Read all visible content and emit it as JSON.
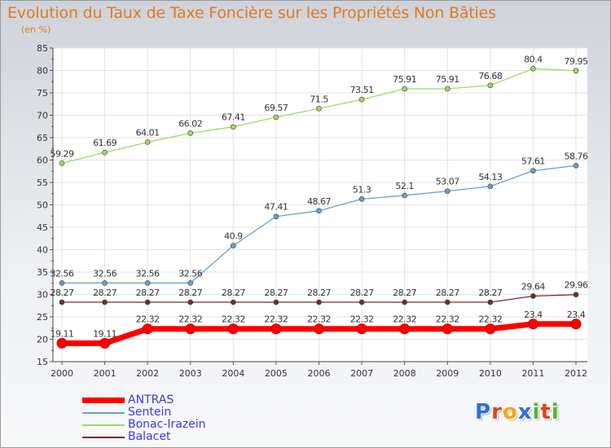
{
  "title": "Evolution du Taux de Taxe Foncière sur les Propriétés Non Bâties",
  "unit_label": "(en %)",
  "logo": {
    "text": "Proxiti",
    "letters": [
      {
        "ch": "P",
        "color": "#2f6fd6"
      },
      {
        "ch": "r",
        "color": "#e0431b"
      },
      {
        "ch": "o",
        "color": "#f2a71b"
      },
      {
        "ch": "x",
        "color": "#2f6fd6"
      },
      {
        "ch": "i",
        "color": "#58b42b"
      },
      {
        "ch": "t",
        "color": "#e0431b"
      },
      {
        "ch": "i",
        "color": "#58b42b"
      }
    ]
  },
  "chart_data": {
    "type": "line",
    "title": "Evolution du Taux de Taxe Foncière sur les Propriétés Non Bâties",
    "ylabel": "(en %)",
    "xlabel": "",
    "x": [
      "2000",
      "2001",
      "2002",
      "2003",
      "2004",
      "2005",
      "2006",
      "2007",
      "2008",
      "2009",
      "2010",
      "2011",
      "2012"
    ],
    "ylim": [
      15,
      85
    ],
    "yticks": [
      15,
      20,
      25,
      30,
      35,
      40,
      45,
      50,
      55,
      60,
      65,
      70,
      75,
      80,
      85
    ],
    "grid": true,
    "legend_position": "bottom-left",
    "series": [
      {
        "name": "ANTRAS",
        "color": "#ff0000",
        "values": [
          19.11,
          19.11,
          22.32,
          22.32,
          22.32,
          22.32,
          22.32,
          22.32,
          22.32,
          22.32,
          22.32,
          23.4,
          23.4
        ],
        "labels": [
          "19.11",
          "19.11",
          "22.32",
          "22.32",
          "22.32",
          "22.32",
          "22.32",
          "22.32",
          "22.32",
          "22.32",
          "22.32",
          "23.4",
          "23.4"
        ]
      },
      {
        "name": "Sentein",
        "color": "#6a9fcf",
        "values": [
          32.56,
          32.56,
          32.56,
          32.56,
          40.9,
          47.41,
          48.67,
          51.3,
          52.1,
          53.07,
          54.13,
          57.61,
          58.76
        ],
        "labels": [
          "32.56",
          "32.56",
          "32.56",
          "32.56",
          "40.9",
          "47.41",
          "48.67",
          "51.3",
          "52.1",
          "53.07",
          "54.13",
          "57.61",
          "58.76"
        ]
      },
      {
        "name": "Bonac-Irazein",
        "color": "#99dd66",
        "values": [
          59.29,
          61.69,
          64.01,
          66.02,
          67.41,
          69.57,
          71.5,
          73.51,
          75.91,
          75.91,
          76.68,
          80.4,
          79.95
        ],
        "labels": [
          "59.29",
          "61.69",
          "64.01",
          "66.02",
          "67.41",
          "69.57",
          "71.5",
          "73.51",
          "75.91",
          "75.91",
          "76.68",
          "80.4",
          "79.95"
        ]
      },
      {
        "name": "Balacet",
        "color": "#7a2a2a",
        "values": [
          28.27,
          28.27,
          28.27,
          28.27,
          28.27,
          28.27,
          28.27,
          28.27,
          28.27,
          28.27,
          28.27,
          29.64,
          29.96
        ],
        "labels": [
          "28.27",
          "28.27",
          "28.27",
          "28.27",
          "28.27",
          "28.27",
          "28.27",
          "28.27",
          "28.27",
          "28.27",
          "28.27",
          "29.64",
          "29.96"
        ]
      }
    ]
  }
}
